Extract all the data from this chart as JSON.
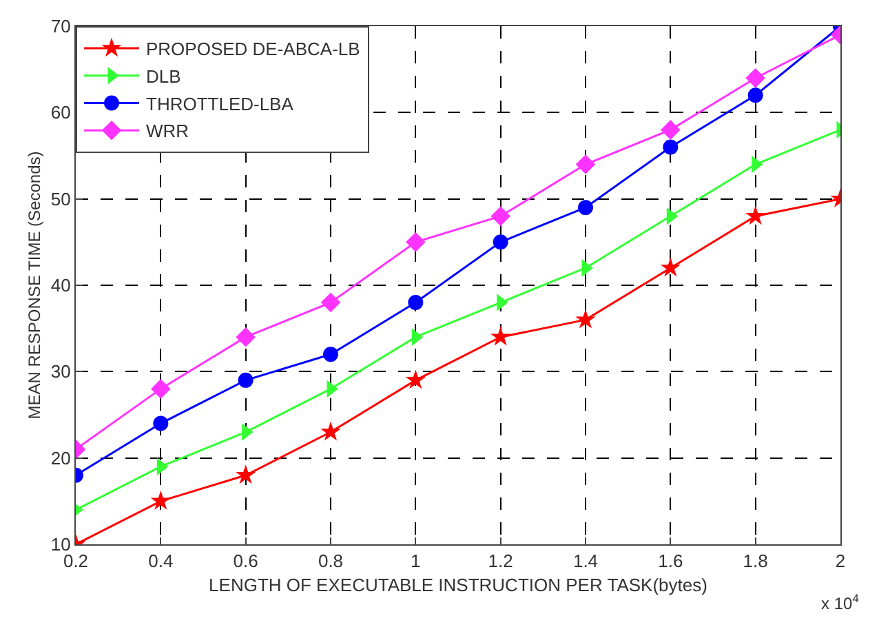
{
  "chart_data": {
    "type": "line",
    "xlabel": "LENGTH OF EXECUTABLE INSTRUCTION PER TASK(bytes)",
    "ylabel": "MEAN RESPONSE TIME (Seconds)",
    "annotations": [
      "x 10$^{4}$"
    ],
    "x": [
      0.2,
      0.4,
      0.6,
      0.8,
      1,
      1.2,
      1.4,
      1.6,
      1.8,
      2
    ],
    "series": [
      {
        "name": "PROPOSED DE-ABCA-LB",
        "color": "#ff0000",
        "marker": "star",
        "values": [
          10,
          15,
          18,
          23,
          29,
          34,
          36,
          42,
          48,
          50
        ]
      },
      {
        "name": "DLB",
        "color": "#33ff33",
        "marker": "triangle",
        "values": [
          14,
          19,
          23,
          28,
          34,
          38,
          42,
          48,
          54,
          58
        ]
      },
      {
        "name": "THROTTLED-LBA",
        "color": "#0000ff",
        "marker": "circle",
        "values": [
          18,
          24,
          29,
          32,
          38,
          45,
          49,
          56,
          62,
          70
        ]
      },
      {
        "name": "WRR",
        "color": "#ff33ff",
        "marker": "diamond",
        "values": [
          21,
          28,
          34,
          38,
          45,
          48,
          54,
          58,
          64,
          69
        ]
      }
    ],
    "xlim": [
      0.2,
      2
    ],
    "xticks": [
      0.2,
      0.4,
      0.6,
      0.8,
      1,
      1.2,
      1.4,
      1.6,
      1.8,
      2
    ],
    "ylim": [
      10,
      70
    ],
    "yticks": [
      10,
      20,
      30,
      40,
      50,
      60,
      70
    ],
    "grid": true,
    "legend": "top left",
    "line_style": "solid"
  }
}
